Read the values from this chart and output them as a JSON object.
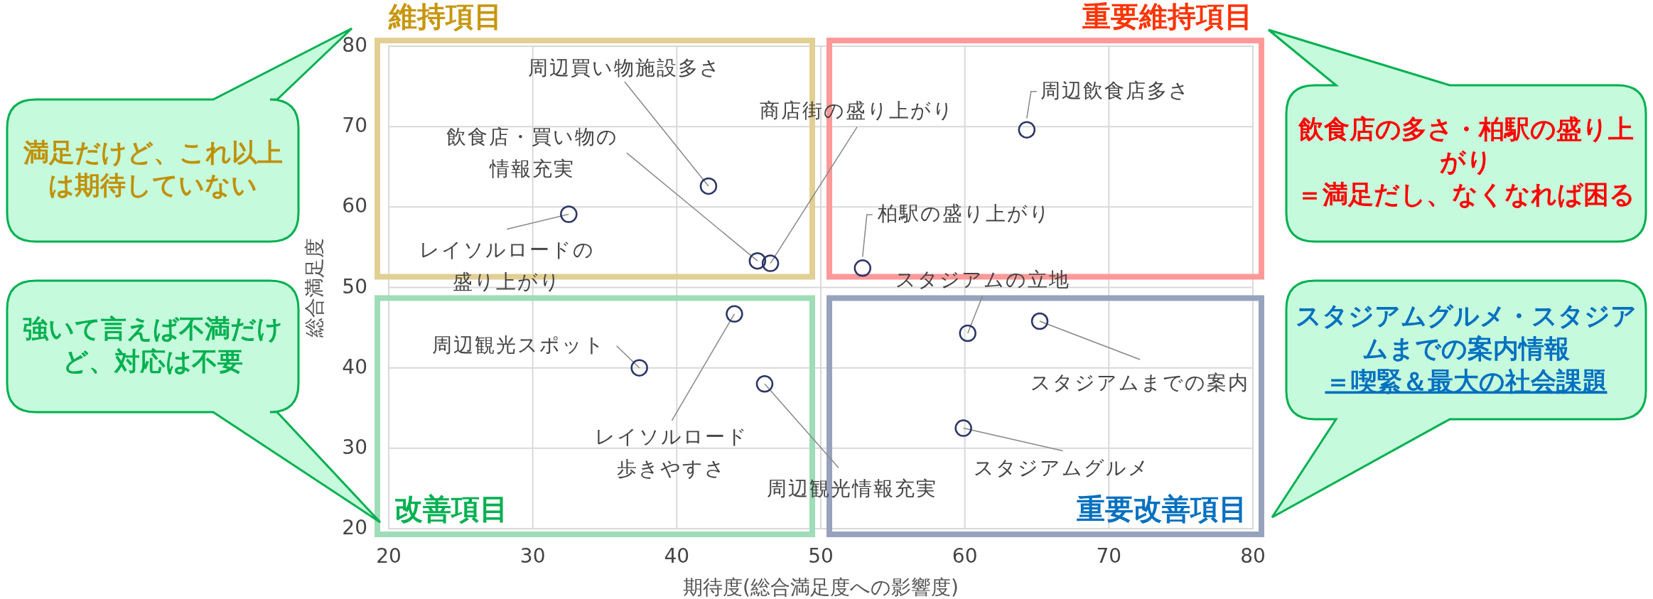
{
  "chart_data": {
    "type": "scatter",
    "xlabel": "期待度(総合満足度への影響度)",
    "ylabel": "総合満足度",
    "xlim": [
      20,
      80
    ],
    "ylim": [
      20,
      80
    ],
    "xticks": [
      20,
      30,
      40,
      50,
      60,
      70,
      80
    ],
    "yticks": [
      20,
      30,
      40,
      50,
      60,
      70,
      80
    ],
    "grid": true,
    "marker": "circle",
    "series": [
      {
        "color": "#2b3566",
        "x": [
          42.2,
          45.6,
          46.5,
          32.5,
          64.3,
          52.9,
          60.2,
          65.2,
          59.9,
          37.4,
          44.0,
          46.1
        ],
        "values": [
          62.6,
          53.3,
          53.0,
          59.1,
          69.6,
          52.4,
          44.3,
          45.8,
          32.5,
          40.0,
          46.7,
          38.0
        ]
      }
    ],
    "annotations": [
      {
        "text": "周辺買い物施設多さ",
        "x": 42.2,
        "y": 62.6
      },
      {
        "text": "飲食店・買い物の情報充実",
        "x": 45.6,
        "y": 53.3
      },
      {
        "text": "商店街の盛り上がり",
        "x": 46.5,
        "y": 53.0
      },
      {
        "text": "レイソルロードの盛り上がり",
        "x": 32.5,
        "y": 59.1
      },
      {
        "text": "周辺飲食店多さ",
        "x": 64.3,
        "y": 69.6
      },
      {
        "text": "柏駅の盛り上がり",
        "x": 52.9,
        "y": 52.4
      },
      {
        "text": "スタジアムの立地",
        "x": 60.2,
        "y": 44.3
      },
      {
        "text": "スタジアムまでの案内",
        "x": 65.2,
        "y": 45.8
      },
      {
        "text": "スタジアムグルメ",
        "x": 59.9,
        "y": 32.5
      },
      {
        "text": "周辺観光スポット",
        "x": 37.4,
        "y": 40.0
      },
      {
        "text": "レイソルロード歩きやすさ",
        "x": 44.0,
        "y": 46.7
      },
      {
        "text": "周辺観光情報充実",
        "x": 46.1,
        "y": 38.0
      },
      "維持項目",
      "重要維持項目",
      "改善項目",
      "重要改善項目",
      "満足だけど、これ以上は期待していない",
      "強いて言えば不満だけど、対応は不要",
      "飲食店の多さ・柏駅の盛り上がり＝満足だし、なくなれば困る",
      "スタジアムグルメ・スタジアムまでの案内情報＝喫緊＆最大の社会課題"
    ]
  }
}
